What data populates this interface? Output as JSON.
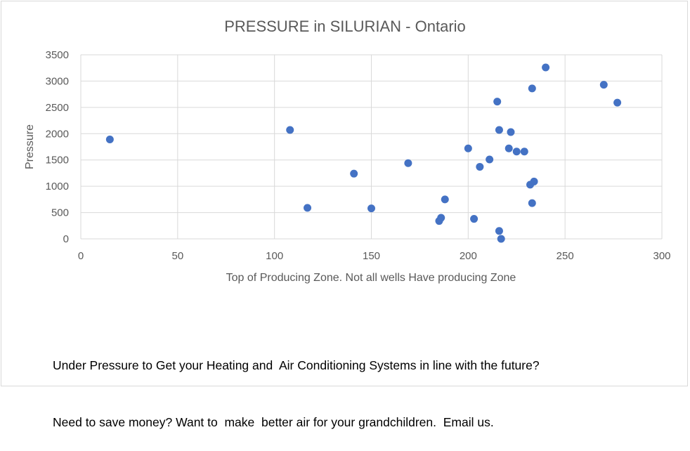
{
  "colors": {
    "point": "#4472c4",
    "grid": "#d9d9d9",
    "title": "#595959",
    "axis_text": "#595959",
    "caption": "#000000"
  },
  "chart_data": {
    "type": "scatter",
    "title": "PRESSURE in SILURIAN - Ontario",
    "xlabel": "Top  of Producing Zone. Not all wells Have producing Zone",
    "ylabel": "Pressure",
    "xlim": [
      0,
      300
    ],
    "ylim": [
      0,
      3500
    ],
    "xticks": [
      0,
      50,
      100,
      150,
      200,
      250,
      300
    ],
    "yticks": [
      0,
      500,
      1000,
      1500,
      2000,
      2500,
      3000,
      3500
    ],
    "grid": true,
    "legend": "none",
    "points": [
      [
        15,
        1890
      ],
      [
        108,
        2070
      ],
      [
        117,
        590
      ],
      [
        141,
        1240
      ],
      [
        150,
        580
      ],
      [
        169,
        1440
      ],
      [
        185,
        340
      ],
      [
        186,
        400
      ],
      [
        188,
        750
      ],
      [
        200,
        1720
      ],
      [
        203,
        380
      ],
      [
        206,
        1370
      ],
      [
        211,
        1510
      ],
      [
        215,
        2610
      ],
      [
        216,
        150
      ],
      [
        216,
        2070
      ],
      [
        217,
        0
      ],
      [
        221,
        1720
      ],
      [
        222,
        2030
      ],
      [
        225,
        1660
      ],
      [
        229,
        1660
      ],
      [
        232,
        1030
      ],
      [
        233,
        680
      ],
      [
        233,
        2860
      ],
      [
        234,
        1090
      ],
      [
        240,
        3260
      ],
      [
        270,
        2930
      ],
      [
        277,
        2590
      ]
    ]
  },
  "caption": {
    "line1": "Under Pressure to Get your Heating and  Air Conditioning Systems in line with the future?",
    "line2": "Need to save money? Want to  make  better air for your grandchildren.  Email us."
  }
}
